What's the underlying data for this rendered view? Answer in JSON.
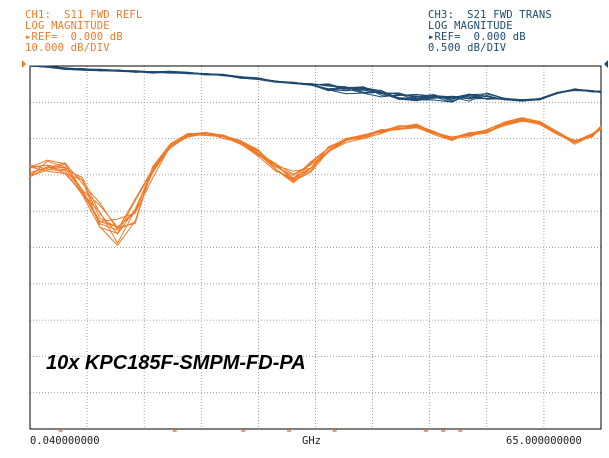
{
  "header": {
    "ch1": {
      "title": "CH1:  S11 FWD REFL",
      "format": "LOG MAGNITUDE",
      "ref": "▸REF=  0.000 dB",
      "scale": "10.000 dB/DIV"
    },
    "ch3": {
      "title": "CH3:  S21 FWD TRANS",
      "format": "LOG MAGNITUDE",
      "ref": "▸REF=  0.000 dB",
      "scale": "0.500 dB/DIV"
    }
  },
  "footer": {
    "x_start": "0.040000000",
    "x_unit": "GHz",
    "x_stop": "65.000000000"
  },
  "annotation": "10x KPC185F-SMPM-FD-PA",
  "colors": {
    "s11": "#f07a28",
    "s21": "#1e4a70",
    "grid": "#8a8a8a",
    "frame": "#000000"
  },
  "chart_data": {
    "type": "line",
    "x_unit": "GHz",
    "xlim": [
      0.04,
      65.0
    ],
    "grid": true,
    "divisions": {
      "x": 10,
      "y": 10
    },
    "ch1_ref_db": 0.0,
    "ch1_db_per_div": 10.0,
    "ch3_ref_db": 0.0,
    "ch3_db_per_div": 0.5,
    "x": [
      0.04,
      2,
      4,
      6,
      8,
      10,
      12,
      14,
      16,
      18,
      20,
      22,
      24,
      26,
      28,
      30,
      32,
      34,
      36,
      38,
      40,
      42,
      44,
      46,
      48,
      50,
      52,
      54,
      56,
      58,
      60,
      62,
      64,
      65
    ],
    "series": [
      {
        "name": "S11",
        "count": 10,
        "values": [
          -29,
          -27.5,
          -28,
          -33,
          -41,
          -47,
          -40,
          -29,
          -22,
          -19,
          -18.8,
          -19.5,
          -21,
          -24,
          -28,
          -31,
          -28,
          -23,
          -20.5,
          -19.5,
          -18,
          -17,
          -16.5,
          -18.5,
          -20,
          -19,
          -18,
          -16,
          -14.8,
          -15.5,
          -18.5,
          -21,
          -19,
          -17
        ]
      },
      {
        "name": "S21",
        "count": 10,
        "values": [
          0.3,
          0.27,
          0.24,
          0.23,
          0.22,
          0.21,
          0.2,
          0.19,
          0.19,
          0.18,
          0.16,
          0.15,
          0.12,
          0.1,
          0.06,
          0.04,
          0.02,
          -0.02,
          -0.06,
          -0.06,
          -0.1,
          -0.14,
          -0.16,
          -0.16,
          -0.18,
          -0.16,
          -0.14,
          -0.18,
          -0.2,
          -0.18,
          -0.1,
          -0.05,
          -0.07,
          -0.08
        ]
      }
    ]
  }
}
